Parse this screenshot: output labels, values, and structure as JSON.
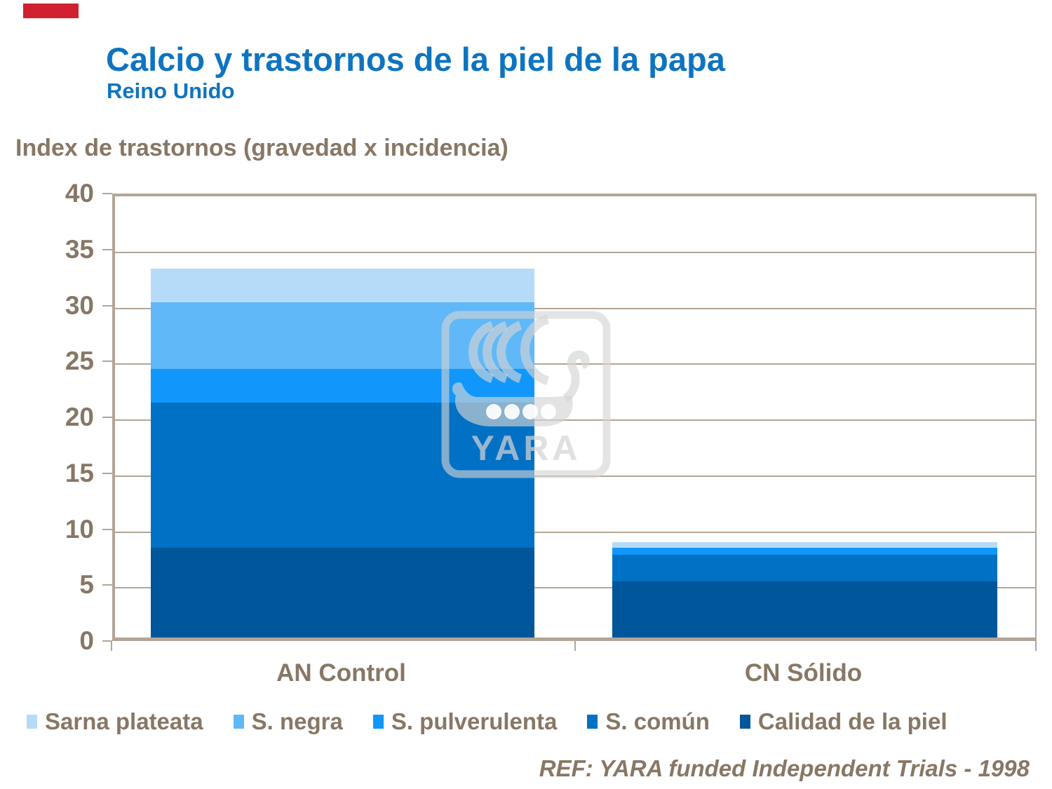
{
  "header": {
    "title": "Calcio y trastornos de la piel de la papa",
    "subtitle": "Reino Unido"
  },
  "chart_data": {
    "type": "bar",
    "stacked": true,
    "title": "Calcio y trastornos de la piel de la papa",
    "ylabel": "Index de trastornos (gravedad x incidencia)",
    "categories": [
      "AN Control",
      "CN Sólido"
    ],
    "series": [
      {
        "name": "Calidad de la piel",
        "color": "#00569b",
        "values": [
          8,
          5
        ]
      },
      {
        "name": "S. común",
        "color": "#0071c4",
        "values": [
          13,
          2.4
        ]
      },
      {
        "name": "S. pulverulenta",
        "color": "#1197fc",
        "values": [
          3,
          0.6
        ]
      },
      {
        "name": "S. negra",
        "color": "#60b8f8",
        "values": [
          6,
          0
        ]
      },
      {
        "name": "Sarna plateata",
        "color": "#b6dbf8",
        "values": [
          3,
          0.5
        ]
      }
    ],
    "totals": [
      33,
      8.5
    ],
    "ylim": [
      0,
      40
    ],
    "yticks": [
      40,
      35,
      30,
      25,
      20,
      15,
      10,
      5,
      0
    ],
    "grid": true,
    "legend_position": "bottom"
  },
  "footer": {
    "ref": "REF: YARA funded Independent Trials - 1998"
  },
  "watermark": {
    "text": "YARA"
  },
  "colors": {
    "title_blue": "#0e74c0",
    "axis_tan": "#b3a597",
    "text_brown": "#877765",
    "accent_red": "#cf2130"
  }
}
